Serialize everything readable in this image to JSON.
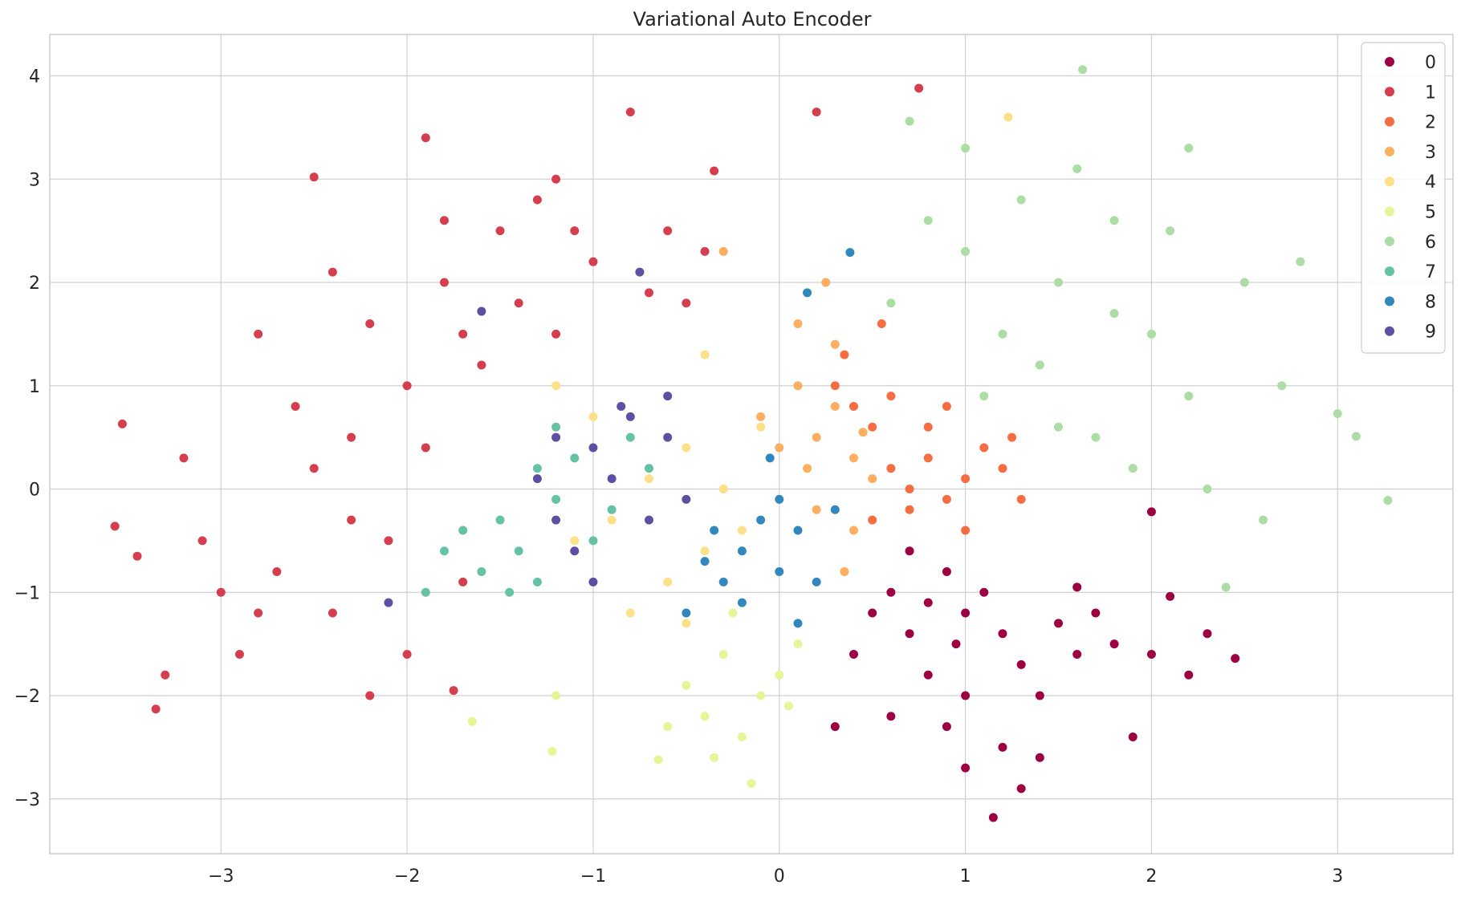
{
  "chart_data": {
    "type": "scatter",
    "title": "Variational Auto Encoder",
    "xlabel": "",
    "ylabel": "",
    "xlim": [
      -3.92,
      3.62
    ],
    "ylim": [
      -3.53,
      4.4
    ],
    "x_ticks": [
      -3,
      -2,
      -1,
      0,
      1,
      2,
      3
    ],
    "x_tick_labels": [
      "−3",
      "−2",
      "−1",
      "0",
      "1",
      "2",
      "3"
    ],
    "y_ticks": [
      -3,
      -2,
      -1,
      0,
      1,
      2,
      3,
      4
    ],
    "y_tick_labels": [
      "−3",
      "−2",
      "−1",
      "0",
      "1",
      "2",
      "3",
      "4"
    ],
    "grid": true,
    "legend_position": "top-right",
    "series": [
      {
        "name": "0",
        "color": "#9e0142",
        "points": [
          [
            0.6,
            -1.0
          ],
          [
            0.8,
            -1.1
          ],
          [
            1.0,
            -1.2
          ],
          [
            1.2,
            -1.4
          ],
          [
            0.9,
            -0.8
          ],
          [
            0.7,
            -1.4
          ],
          [
            1.1,
            -1.0
          ],
          [
            1.3,
            -1.7
          ],
          [
            1.5,
            -1.3
          ],
          [
            0.5,
            -1.2
          ],
          [
            0.4,
            -1.6
          ],
          [
            0.8,
            -1.8
          ],
          [
            1.0,
            -2.0
          ],
          [
            1.4,
            -2.0
          ],
          [
            1.6,
            -1.6
          ],
          [
            1.8,
            -1.5
          ],
          [
            2.0,
            -1.6
          ],
          [
            2.2,
            -1.8
          ],
          [
            0.6,
            -2.2
          ],
          [
            0.9,
            -2.3
          ],
          [
            1.2,
            -2.5
          ],
          [
            1.4,
            -2.6
          ],
          [
            1.0,
            -2.7
          ],
          [
            1.3,
            -2.9
          ],
          [
            1.15,
            -3.18
          ],
          [
            2.0,
            -0.22
          ],
          [
            2.1,
            -1.04
          ],
          [
            2.45,
            -1.64
          ],
          [
            0.3,
            -2.3
          ],
          [
            0.95,
            -1.5
          ],
          [
            1.7,
            -1.2
          ],
          [
            1.9,
            -2.4
          ],
          [
            0.7,
            -0.6
          ],
          [
            1.6,
            -0.95
          ],
          [
            2.3,
            -1.4
          ]
        ]
      },
      {
        "name": "1",
        "color": "#d53e4f",
        "points": [
          [
            -3.57,
            -0.36
          ],
          [
            -3.53,
            0.63
          ],
          [
            -3.45,
            -0.65
          ],
          [
            -3.35,
            -2.13
          ],
          [
            -3.0,
            -1.0
          ],
          [
            -2.8,
            1.5
          ],
          [
            -2.5,
            3.02
          ],
          [
            -2.3,
            0.5
          ],
          [
            -2.1,
            -0.5
          ],
          [
            -2.0,
            1.0
          ],
          [
            -1.8,
            2.0
          ],
          [
            -1.5,
            2.5
          ],
          [
            -1.2,
            3.0
          ],
          [
            -1.0,
            2.2
          ],
          [
            -0.8,
            3.65
          ],
          [
            -0.6,
            2.5
          ],
          [
            -0.4,
            2.3
          ],
          [
            -1.4,
            1.8
          ],
          [
            -1.6,
            1.2
          ],
          [
            -2.2,
            1.6
          ],
          [
            -2.6,
            0.8
          ],
          [
            -2.7,
            -0.8
          ],
          [
            -2.9,
            -1.6
          ],
          [
            -2.4,
            -1.2
          ],
          [
            -2.2,
            -2.0
          ],
          [
            -2.0,
            -1.6
          ],
          [
            -1.7,
            -0.9
          ],
          [
            -1.3,
            2.8
          ],
          [
            -1.1,
            2.5
          ],
          [
            -0.7,
            1.9
          ],
          [
            -0.5,
            1.8
          ],
          [
            -1.9,
            3.4
          ],
          [
            -1.8,
            2.6
          ],
          [
            -2.4,
            2.1
          ],
          [
            -3.2,
            0.3
          ],
          [
            -3.1,
            -0.5
          ],
          [
            0.2,
            3.65
          ],
          [
            0.75,
            3.88
          ],
          [
            -0.35,
            3.08
          ],
          [
            -2.3,
            -0.3
          ],
          [
            -2.5,
            0.2
          ],
          [
            -1.9,
            0.4
          ],
          [
            -1.7,
            1.5
          ],
          [
            -1.2,
            1.5
          ],
          [
            -2.8,
            -1.2
          ],
          [
            -3.3,
            -1.8
          ],
          [
            -1.75,
            -1.95
          ]
        ]
      },
      {
        "name": "2",
        "color": "#f46d43",
        "points": [
          [
            0.6,
            0.2
          ],
          [
            0.8,
            0.3
          ],
          [
            1.0,
            0.1
          ],
          [
            0.7,
            -0.2
          ],
          [
            0.9,
            -0.1
          ],
          [
            1.1,
            0.4
          ],
          [
            0.5,
            0.6
          ],
          [
            0.4,
            0.8
          ],
          [
            0.3,
            1.0
          ],
          [
            0.6,
            0.9
          ],
          [
            1.2,
            0.2
          ],
          [
            1.3,
            -0.1
          ],
          [
            0.8,
            0.6
          ],
          [
            0.9,
            0.8
          ],
          [
            1.0,
            -0.4
          ],
          [
            0.7,
            0.0
          ],
          [
            0.5,
            -0.3
          ],
          [
            0.35,
            1.3
          ],
          [
            1.25,
            0.5
          ],
          [
            0.55,
            1.6
          ]
        ]
      },
      {
        "name": "3",
        "color": "#fdae61",
        "points": [
          [
            0.2,
            0.5
          ],
          [
            0.3,
            0.8
          ],
          [
            0.1,
            1.0
          ],
          [
            0.4,
            0.3
          ],
          [
            0.2,
            -0.2
          ],
          [
            0.0,
            0.4
          ],
          [
            0.3,
            1.4
          ],
          [
            0.1,
            1.6
          ],
          [
            0.4,
            -0.4
          ],
          [
            -0.1,
            0.7
          ],
          [
            0.5,
            0.1
          ],
          [
            0.25,
            2.0
          ],
          [
            0.15,
            0.2
          ],
          [
            0.35,
            -0.8
          ],
          [
            0.45,
            0.55
          ],
          [
            -0.3,
            2.3
          ]
        ]
      },
      {
        "name": "4",
        "color": "#fee08b",
        "points": [
          [
            -0.5,
            0.4
          ],
          [
            -0.7,
            0.1
          ],
          [
            -0.9,
            -0.3
          ],
          [
            -0.4,
            -0.6
          ],
          [
            -0.6,
            -0.9
          ],
          [
            -0.8,
            -1.2
          ],
          [
            -1.0,
            0.7
          ],
          [
            -0.3,
            0.0
          ],
          [
            -0.2,
            -0.4
          ],
          [
            -1.1,
            -0.5
          ],
          [
            -0.5,
            -1.3
          ],
          [
            -1.2,
            1.0
          ],
          [
            -0.1,
            0.6
          ],
          [
            -0.6,
            0.9
          ],
          [
            1.23,
            3.6
          ],
          [
            -0.4,
            1.3
          ]
        ]
      },
      {
        "name": "5",
        "color": "#e6f598",
        "points": [
          [
            -0.3,
            -1.6
          ],
          [
            -0.1,
            -2.0
          ],
          [
            -0.4,
            -2.2
          ],
          [
            0.0,
            -1.8
          ],
          [
            -0.2,
            -2.4
          ],
          [
            -0.5,
            -1.9
          ],
          [
            0.1,
            -1.5
          ],
          [
            -0.6,
            -2.3
          ],
          [
            -0.35,
            -2.6
          ],
          [
            -0.65,
            -2.62
          ],
          [
            -0.15,
            -2.85
          ],
          [
            -1.22,
            -2.54
          ],
          [
            -1.65,
            -2.25
          ],
          [
            -1.2,
            -2.0
          ],
          [
            0.05,
            -2.1
          ],
          [
            -0.25,
            -1.2
          ]
        ]
      },
      {
        "name": "6",
        "color": "#abdda4",
        "points": [
          [
            1.2,
            1.5
          ],
          [
            1.5,
            2.0
          ],
          [
            1.8,
            1.7
          ],
          [
            1.0,
            2.3
          ],
          [
            1.4,
            1.2
          ],
          [
            2.0,
            1.5
          ],
          [
            1.7,
            0.5
          ],
          [
            2.2,
            0.9
          ],
          [
            1.3,
            2.8
          ],
          [
            1.6,
            3.1
          ],
          [
            1.0,
            3.3
          ],
          [
            2.5,
            2.0
          ],
          [
            2.3,
            0.0
          ],
          [
            2.6,
            -0.3
          ],
          [
            1.9,
            0.2
          ],
          [
            1.1,
            0.9
          ],
          [
            0.8,
            2.6
          ],
          [
            0.7,
            3.56
          ],
          [
            1.63,
            4.06
          ],
          [
            2.8,
            2.2
          ],
          [
            3.0,
            0.73
          ],
          [
            3.1,
            0.51
          ],
          [
            3.27,
            -0.11
          ],
          [
            2.4,
            -0.95
          ],
          [
            2.1,
            2.5
          ],
          [
            1.5,
            0.6
          ],
          [
            0.6,
            1.8
          ],
          [
            2.7,
            1.0
          ],
          [
            2.2,
            3.3
          ],
          [
            1.8,
            2.6
          ]
        ]
      },
      {
        "name": "7",
        "color": "#66c2a5",
        "points": [
          [
            -1.2,
            -0.1
          ],
          [
            -1.4,
            -0.6
          ],
          [
            -1.1,
            0.3
          ],
          [
            -0.9,
            -0.2
          ],
          [
            -1.5,
            -0.3
          ],
          [
            -1.3,
            0.2
          ],
          [
            -0.8,
            0.5
          ],
          [
            -1.0,
            -0.5
          ],
          [
            -1.6,
            -0.8
          ],
          [
            -1.7,
            -0.4
          ],
          [
            -0.7,
            0.2
          ],
          [
            -1.2,
            0.6
          ],
          [
            -1.45,
            -1.0
          ],
          [
            -1.8,
            -0.6
          ],
          [
            -1.9,
            -1.0
          ],
          [
            -1.3,
            -0.9
          ]
        ]
      },
      {
        "name": "8",
        "color": "#3288bd",
        "points": [
          [
            -0.2,
            -0.6
          ],
          [
            0.0,
            -0.8
          ],
          [
            -0.3,
            -0.9
          ],
          [
            -0.1,
            -0.3
          ],
          [
            0.1,
            -0.4
          ],
          [
            -0.4,
            -0.7
          ],
          [
            0.2,
            -0.9
          ],
          [
            -0.2,
            -1.1
          ],
          [
            -0.5,
            -1.2
          ],
          [
            0.0,
            -0.1
          ],
          [
            0.3,
            -0.2
          ],
          [
            -0.35,
            -0.4
          ],
          [
            0.15,
            1.9
          ],
          [
            0.38,
            2.29
          ],
          [
            0.1,
            -1.3
          ],
          [
            -0.05,
            0.3
          ]
        ]
      },
      {
        "name": "9",
        "color": "#5e4fa2",
        "points": [
          [
            -0.8,
            0.7
          ],
          [
            -1.0,
            0.4
          ],
          [
            -1.2,
            -0.3
          ],
          [
            -0.9,
            0.1
          ],
          [
            -0.6,
            0.5
          ],
          [
            -1.1,
            -0.6
          ],
          [
            -0.7,
            -0.3
          ],
          [
            -0.5,
            -0.1
          ],
          [
            -1.3,
            0.1
          ],
          [
            -0.85,
            0.8
          ],
          [
            -1.0,
            -0.9
          ],
          [
            -0.75,
            2.1
          ],
          [
            -1.6,
            1.72
          ],
          [
            -2.1,
            -1.1
          ],
          [
            -0.6,
            0.9
          ],
          [
            -1.2,
            0.5
          ]
        ]
      }
    ]
  }
}
